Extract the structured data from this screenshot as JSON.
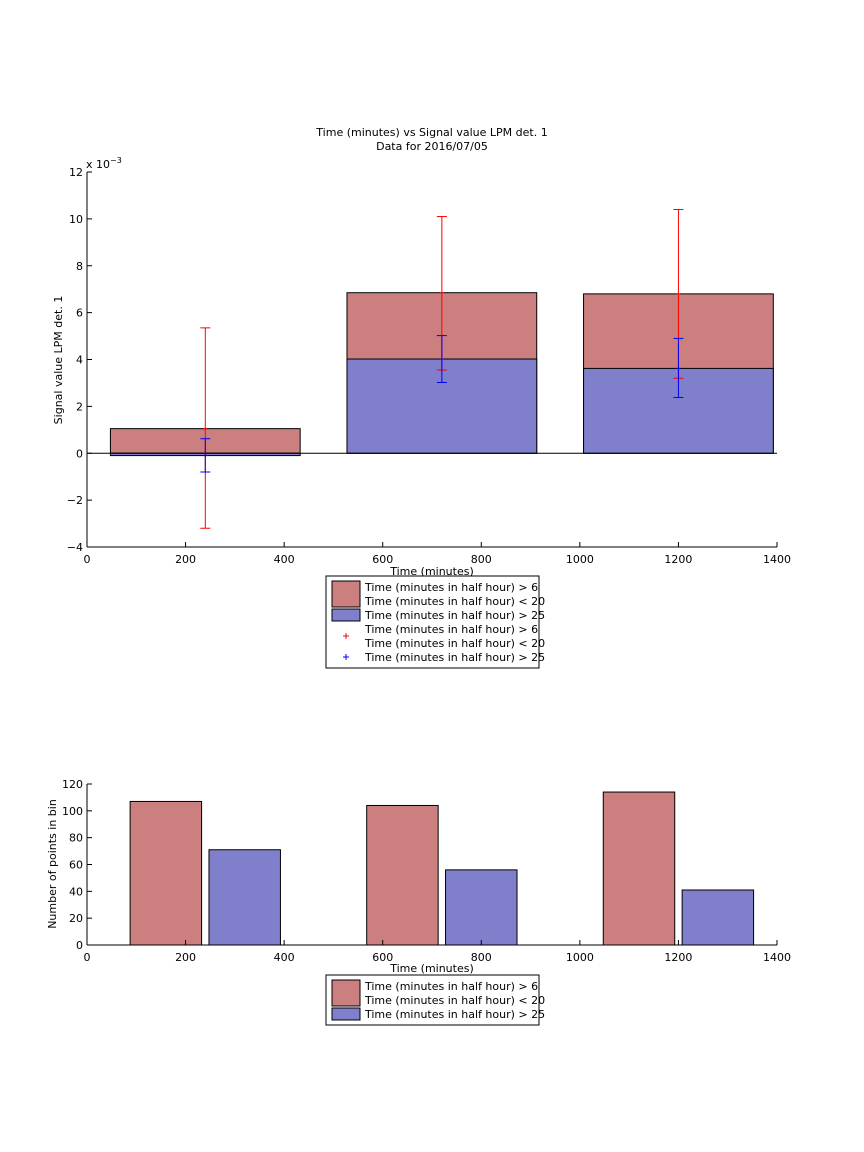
{
  "chart_data": [
    {
      "type": "bar",
      "title": "Time (minutes) vs Signal value LPM det. 1",
      "subtitle": "Data for 2016/07/05",
      "xlabel": "Time (minutes)",
      "ylabel": "Signal value LPM det. 1",
      "exponent_label": "x 10",
      "exponent_power": "−3",
      "xlim": [
        0,
        1400
      ],
      "ylim": [
        -4,
        12
      ],
      "xticks": [
        "0",
        "200",
        "400",
        "600",
        "800",
        "1000",
        "1200",
        "1400"
      ],
      "yticks": [
        "−4",
        "−2",
        "0",
        "2",
        "4",
        "6",
        "8",
        "10",
        "12"
      ],
      "x": [
        240,
        720,
        1200
      ],
      "bar_width": 385,
      "series": [
        {
          "name": "Time (minutes in half hour) > 6\nTime (minutes in half hour) < 20",
          "values": [
            1.05,
            6.85,
            6.8
          ],
          "color": "#cb7f7f",
          "errorbar_color": "#ff0000",
          "err_low": [
            -3.2,
            3.55,
            3.2
          ],
          "err_high": [
            5.35,
            10.1,
            10.4
          ]
        },
        {
          "name": "Time (minutes in half hour) > 25",
          "values": [
            -0.1,
            4.02,
            3.62
          ],
          "color": "#7f7fcb",
          "errorbar_color": "#0000ff",
          "err_low": [
            -0.8,
            3.02,
            2.38
          ],
          "err_high": [
            0.62,
            5.02,
            4.9
          ]
        }
      ],
      "legend": [
        {
          "swatch": "bar",
          "color": "#cb7f7f",
          "line1": "Time (minutes in half hour) > 6",
          "line2": "Time (minutes in half hour) < 20"
        },
        {
          "swatch": "bar",
          "color": "#7f7fcb",
          "line1": "Time (minutes in half hour) > 25"
        },
        {
          "swatch": "plus",
          "color": "#ff0000",
          "line1": "Time (minutes in half hour) > 6",
          "line2": "Time (minutes in half hour) < 20"
        },
        {
          "swatch": "plus",
          "color": "#0000ff",
          "line1": "Time (minutes in half hour) > 25"
        }
      ]
    },
    {
      "type": "bar",
      "xlabel": "Time (minutes)",
      "ylabel": "Number of points in bin",
      "xlim": [
        0,
        1400
      ],
      "ylim": [
        0,
        120
      ],
      "xticks": [
        "0",
        "200",
        "400",
        "600",
        "800",
        "1000",
        "1200",
        "1400"
      ],
      "yticks": [
        "0",
        "20",
        "40",
        "60",
        "80",
        "100",
        "120"
      ],
      "series": [
        {
          "name": "Time (minutes in half hour) > 6\nTime (minutes in half hour) < 20",
          "x": [
            160,
            640,
            1120
          ],
          "values": [
            107,
            104,
            114
          ],
          "color": "#cb7f7f"
        },
        {
          "name": "Time (minutes in half hour) > 25",
          "x": [
            320,
            800,
            1280
          ],
          "values": [
            71,
            56,
            41
          ],
          "color": "#7f7fcb"
        }
      ],
      "bar_width": 145,
      "legend": [
        {
          "swatch": "bar",
          "color": "#cb7f7f",
          "line1": "Time (minutes in half hour) > 6",
          "line2": "Time (minutes in half hour) < 20"
        },
        {
          "swatch": "bar",
          "color": "#7f7fcb",
          "line1": "Time (minutes in half hour) > 25"
        }
      ]
    }
  ]
}
